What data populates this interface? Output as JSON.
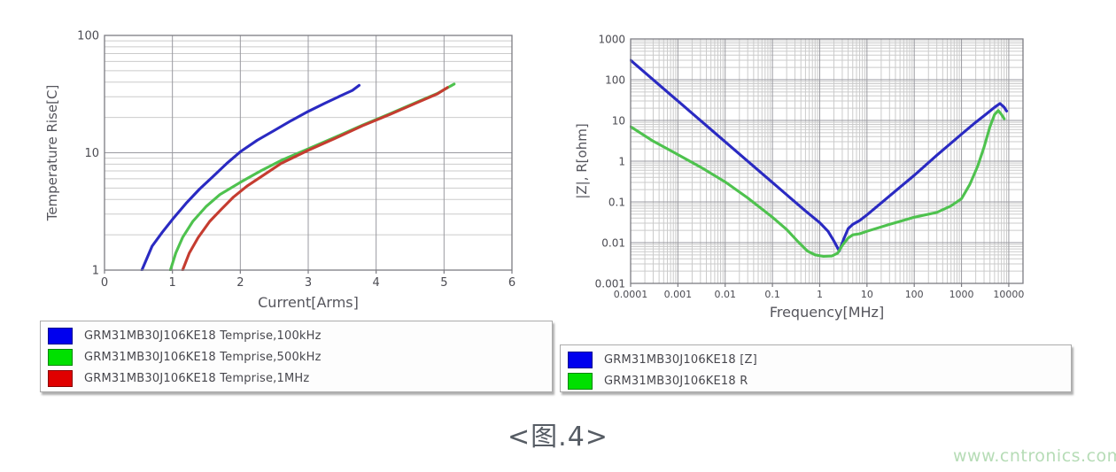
{
  "page": {
    "caption": "<图.4>",
    "watermark": "www.cntronics.com",
    "background_color": "#ffffff",
    "caption_color": "#565c64",
    "watermark_color": "#b6dcb6"
  },
  "chart_data": [
    {
      "type": "line",
      "title": "",
      "xlabel": "Current[Arms]",
      "ylabel": "Temperature Rise[C]",
      "xscale": "linear",
      "yscale": "log",
      "xlim": [
        0,
        6
      ],
      "ylim": [
        1,
        100
      ],
      "xticks": [
        0,
        1,
        2,
        3,
        4,
        5,
        6
      ],
      "xtick_labels": [
        "0",
        "1",
        "2",
        "3",
        "4",
        "5",
        "6"
      ],
      "yticks": [
        1,
        10,
        100
      ],
      "ytick_labels": [
        "1",
        "10",
        "100"
      ],
      "grid": "on",
      "legend_position": "below-left",
      "series": [
        {
          "name": "GRM31MB30J106KE18 Temprise,100kHz",
          "line_color": "#2a2ac2",
          "swatch_color": "#0000ee",
          "points": [
            [
              0.55,
              1
            ],
            [
              0.7,
              1.6
            ],
            [
              0.85,
              2.1
            ],
            [
              1.0,
              2.7
            ],
            [
              1.2,
              3.7
            ],
            [
              1.4,
              4.9
            ],
            [
              1.6,
              6.3
            ],
            [
              1.8,
              8.1
            ],
            [
              2.0,
              10.2
            ],
            [
              2.25,
              12.8
            ],
            [
              2.5,
              15.5
            ],
            [
              2.75,
              18.8
            ],
            [
              3.0,
              22.5
            ],
            [
              3.25,
              26.5
            ],
            [
              3.5,
              31
            ],
            [
              3.65,
              34
            ],
            [
              3.75,
              37.5
            ]
          ]
        },
        {
          "name": "GRM31MB30J106KE18 Temprise,500kHz",
          "line_color": "#4ec24e",
          "swatch_color": "#00e000",
          "points": [
            [
              0.97,
              1
            ],
            [
              1.05,
              1.4
            ],
            [
              1.15,
              1.9
            ],
            [
              1.3,
              2.6
            ],
            [
              1.5,
              3.5
            ],
            [
              1.7,
              4.4
            ],
            [
              2.0,
              5.6
            ],
            [
              2.3,
              7.0
            ],
            [
              2.6,
              8.6
            ],
            [
              3.0,
              10.8
            ],
            [
              3.4,
              13.6
            ],
            [
              3.8,
              17.2
            ],
            [
              4.2,
              21.5
            ],
            [
              4.6,
              27
            ],
            [
              4.9,
              32
            ],
            [
              5.15,
              38.5
            ]
          ]
        },
        {
          "name": "GRM31MB30J106KE18 Temprise,1MHz",
          "line_color": "#c53c30",
          "swatch_color": "#e00000",
          "points": [
            [
              1.15,
              1
            ],
            [
              1.25,
              1.4
            ],
            [
              1.38,
              1.9
            ],
            [
              1.55,
              2.6
            ],
            [
              1.72,
              3.3
            ],
            [
              1.9,
              4.2
            ],
            [
              2.1,
              5.2
            ],
            [
              2.35,
              6.5
            ],
            [
              2.6,
              8.1
            ],
            [
              3.0,
              10.5
            ],
            [
              3.4,
              13.3
            ],
            [
              3.8,
              17
            ],
            [
              4.2,
              21.2
            ],
            [
              4.6,
              26.7
            ],
            [
              4.9,
              31.7
            ],
            [
              5.05,
              36
            ]
          ]
        }
      ]
    },
    {
      "type": "line",
      "title": "",
      "xlabel": "Frequency[MHz]",
      "ylabel": "|Z|, R[ohm]",
      "xscale": "log",
      "yscale": "log",
      "xlim": [
        0.0001,
        20000
      ],
      "ylim": [
        0.001,
        1000
      ],
      "xticks": [
        0.0001,
        0.001,
        0.01,
        0.1,
        1,
        10,
        100,
        1000,
        10000
      ],
      "xtick_labels": [
        "0.0001",
        "0.001",
        "0.01",
        "0.1",
        "1",
        "10",
        "100",
        "1000",
        "10000"
      ],
      "yticks": [
        0.001,
        0.01,
        0.1,
        1,
        10,
        100,
        1000
      ],
      "ytick_labels": [
        "0.001",
        "0.01",
        "0.1",
        "1",
        "10",
        "100",
        "1000"
      ],
      "grid": "on",
      "legend_position": "below-left",
      "series": [
        {
          "name": "GRM31MB30J106KE18 [Z]",
          "line_color": "#2a2ac2",
          "swatch_color": "#0000ee",
          "points": [
            [
              0.0001,
              300
            ],
            [
              0.001,
              30
            ],
            [
              0.01,
              3
            ],
            [
              0.1,
              0.3
            ],
            [
              0.5,
              0.06
            ],
            [
              1,
              0.031
            ],
            [
              1.5,
              0.019
            ],
            [
              2,
              0.011
            ],
            [
              2.6,
              0.0062
            ],
            [
              3.2,
              0.012
            ],
            [
              4,
              0.022
            ],
            [
              5,
              0.028
            ],
            [
              7,
              0.035
            ],
            [
              10,
              0.048
            ],
            [
              30,
              0.14
            ],
            [
              100,
              0.45
            ],
            [
              300,
              1.4
            ],
            [
              1000,
              4.6
            ],
            [
              2000,
              9
            ],
            [
              3500,
              15
            ],
            [
              5000,
              21
            ],
            [
              6500,
              26
            ],
            [
              8000,
              21
            ],
            [
              9000,
              17
            ]
          ]
        },
        {
          "name": "GRM31MB30J106KE18 R",
          "line_color": "#4ec24e",
          "swatch_color": "#00e000",
          "points": [
            [
              0.0001,
              7
            ],
            [
              0.0003,
              3.1
            ],
            [
              0.001,
              1.45
            ],
            [
              0.003,
              0.72
            ],
            [
              0.01,
              0.31
            ],
            [
              0.03,
              0.125
            ],
            [
              0.1,
              0.042
            ],
            [
              0.2,
              0.021
            ],
            [
              0.35,
              0.0105
            ],
            [
              0.55,
              0.0062
            ],
            [
              0.8,
              0.005
            ],
            [
              1.2,
              0.0046
            ],
            [
              1.8,
              0.0047
            ],
            [
              2.4,
              0.0055
            ],
            [
              3,
              0.0085
            ],
            [
              4,
              0.013
            ],
            [
              5,
              0.0155
            ],
            [
              7,
              0.0165
            ],
            [
              10,
              0.019
            ],
            [
              30,
              0.028
            ],
            [
              100,
              0.042
            ],
            [
              300,
              0.055
            ],
            [
              600,
              0.08
            ],
            [
              1000,
              0.12
            ],
            [
              1500,
              0.27
            ],
            [
              2200,
              0.75
            ],
            [
              3000,
              2.2
            ],
            [
              4000,
              7
            ],
            [
              5000,
              14
            ],
            [
              6000,
              17.5
            ],
            [
              7000,
              14
            ],
            [
              8000,
              11
            ]
          ]
        }
      ]
    }
  ]
}
